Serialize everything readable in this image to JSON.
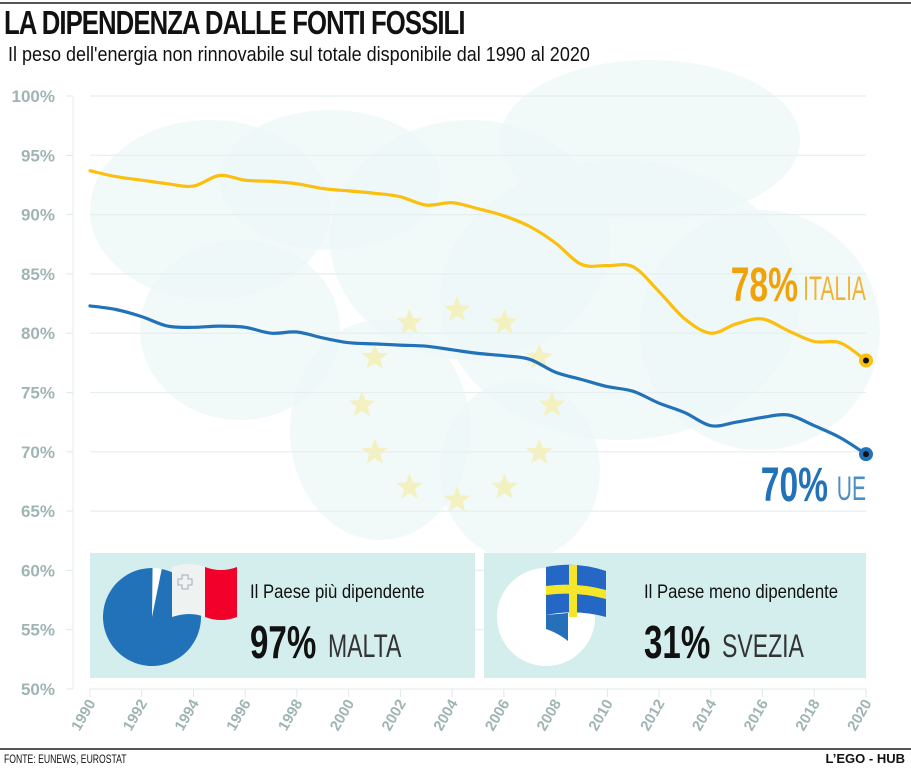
{
  "header": {
    "title": "LA DIPENDENZA DALLE FONTI FOSSILI",
    "subtitle": "Il peso dell'energia non rinnovabile sul totale disponibile dal 1990 al 2020"
  },
  "footer": {
    "source": "FONTE: EUNEWS, EUROSTAT",
    "brand": "L’EGO - HUB"
  },
  "colors": {
    "italia": "#fbbf0f",
    "italia_label": "#f0a20a",
    "ue": "#2272b9",
    "axis_text": "#9fb5b4",
    "card_bg": "#d3eeec",
    "star": "#f4f1c0",
    "map": "#eef7f7"
  },
  "chart_data": {
    "type": "line",
    "title": "LA DIPENDENZA DALLE FONTI FOSSILI",
    "subtitle": "Il peso dell'energia non rinnovabile sul totale disponibile dal 1990 al 2020",
    "xlabel": "",
    "ylabel": "",
    "ylim": [
      50,
      100
    ],
    "xlim": [
      1990,
      2020
    ],
    "grid": true,
    "y_ticks": [
      "100%",
      "95%",
      "90%",
      "85%",
      "80%",
      "75%",
      "70%",
      "65%",
      "60%",
      "55%",
      "50%"
    ],
    "y_tick_values": [
      100,
      95,
      90,
      85,
      80,
      75,
      70,
      65,
      60,
      55,
      50
    ],
    "x_ticks": [
      "1990",
      "1992",
      "1994",
      "1996",
      "1998",
      "2000",
      "2002",
      "2004",
      "2006",
      "2008",
      "2010",
      "2012",
      "2014",
      "2016",
      "2018",
      "2020"
    ],
    "x": [
      1990,
      1991,
      1992,
      1993,
      1994,
      1995,
      1996,
      1997,
      1998,
      1999,
      2000,
      2001,
      2002,
      2003,
      2004,
      2005,
      2006,
      2007,
      2008,
      2009,
      2010,
      2011,
      2012,
      2013,
      2014,
      2015,
      2016,
      2017,
      2018,
      2019,
      2020
    ],
    "series": [
      {
        "name": "ITALIA",
        "values": [
          93.7,
          93.2,
          92.9,
          92.6,
          92.4,
          93.3,
          92.9,
          92.8,
          92.6,
          92.2,
          92.0,
          91.8,
          91.5,
          90.8,
          91.0,
          90.5,
          89.9,
          89.0,
          87.6,
          85.8,
          85.7,
          85.6,
          83.5,
          81.2,
          80.0,
          80.8,
          81.2,
          80.2,
          79.3,
          79.2,
          77.7
        ],
        "end_label_value": "78%",
        "end_label_name": "ITALIA"
      },
      {
        "name": "UE",
        "values": [
          82.3,
          82.0,
          81.4,
          80.6,
          80.5,
          80.6,
          80.5,
          80.0,
          80.1,
          79.6,
          79.2,
          79.1,
          79.0,
          78.9,
          78.6,
          78.3,
          78.1,
          77.8,
          76.7,
          76.1,
          75.5,
          75.1,
          74.1,
          73.3,
          72.2,
          72.5,
          72.9,
          73.1,
          72.2,
          71.2,
          69.8
        ],
        "end_label_value": "70%",
        "end_label_name": "UE"
      }
    ],
    "annotations": [
      {
        "label": "Il Paese più dipendente",
        "value": "97%",
        "country": "MALTA",
        "pie_share": 97,
        "flag": "malta-flag"
      },
      {
        "label": "Il Paese meno dipendente",
        "value": "31%",
        "country": "SVEZIA",
        "pie_share": 31,
        "flag": "sweden-flag"
      }
    ]
  }
}
